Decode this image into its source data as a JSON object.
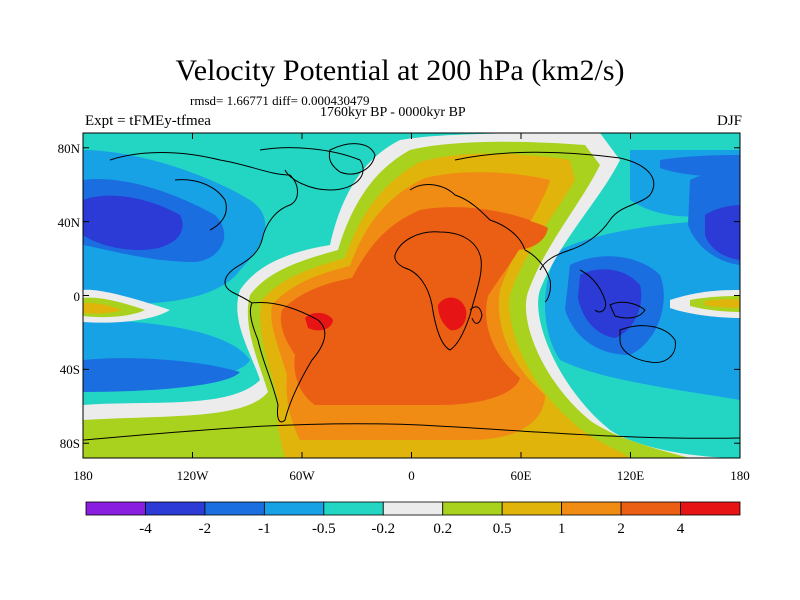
{
  "title": "Velocity Potential at 200 hPa (km2/s)",
  "stats": "rmsd= 1.66771 diff= 0.000430479",
  "period": "1760kyr BP - 0000kyr BP",
  "experiment": "Expt = tFMEy-tfmea",
  "season": "DJF",
  "lat_labels": [
    {
      "text": "80N",
      "lat": 80
    },
    {
      "text": "40N",
      "lat": 40
    },
    {
      "text": "0",
      "lat": 0
    },
    {
      "text": "40S",
      "lat": -40
    },
    {
      "text": "80S",
      "lat": -80
    }
  ],
  "lon_labels": [
    {
      "text": "180",
      "lon": -180
    },
    {
      "text": "120W",
      "lon": -120
    },
    {
      "text": "60W",
      "lon": -60
    },
    {
      "text": "0",
      "lon": 0
    },
    {
      "text": "60E",
      "lon": 60
    },
    {
      "text": "120E",
      "lon": 120
    },
    {
      "text": "180",
      "lon": 180
    }
  ],
  "colorbar": {
    "colors": [
      "#8a1ee0",
      "#2c3ad6",
      "#1a6ee0",
      "#18a2e6",
      "#23d6c4",
      "#ececec",
      "#a8d21e",
      "#e0b40a",
      "#f08c14",
      "#eb5f14",
      "#e61414"
    ],
    "labels": [
      "-4",
      "-2",
      "-1",
      "-0.5",
      "-0.2",
      "0.2",
      "0.5",
      "1",
      "2",
      "4"
    ]
  },
  "field": {
    "level_colors": {
      "-3": "#2c3ad6",
      "-2": "#1a6ee0",
      "-1": "#18a2e6",
      "0": "#23d6c4",
      "1": "#ececec",
      "2": "#a8d21e",
      "3": "#e0b40a",
      "4": "#f08c14",
      "5": "#eb5f14",
      "6": "#e61414"
    }
  }
}
